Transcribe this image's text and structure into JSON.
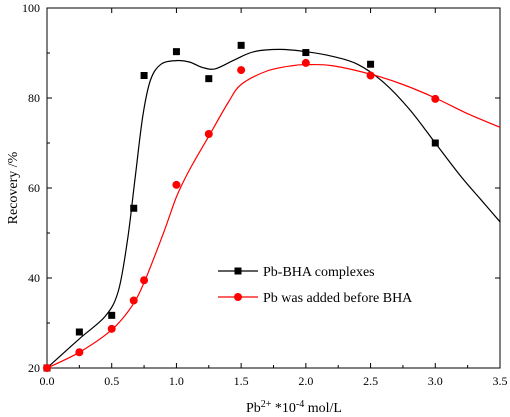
{
  "chart_data": {
    "type": "scatter",
    "xlabel": "Pb2+ *10-4 mol/L",
    "xlabel_parts": {
      "base": "Pb",
      "sup1": "2+",
      "mid": " *10",
      "sup2": "-4",
      "tail": " mol/L"
    },
    "ylabel": "Recovery /%",
    "xlim": [
      0,
      3.5
    ],
    "ylim": [
      20,
      100
    ],
    "xticks": [
      0.0,
      0.5,
      1.0,
      1.5,
      2.0,
      2.5,
      3.0,
      3.5
    ],
    "xtick_labels": [
      "0.0",
      "0.5",
      "1.0",
      "1.5",
      "2.0",
      "2.5",
      "3.0",
      "3.5"
    ],
    "yticks": [
      20,
      40,
      60,
      80,
      100
    ],
    "ytick_labels": [
      "20",
      "40",
      "60",
      "80",
      "100"
    ],
    "grid": false,
    "legend_position": "lower-right",
    "series": [
      {
        "name": "Pb-BHA complexes",
        "color": "#000000",
        "marker": "square",
        "points": [
          [
            0.0,
            20.0
          ],
          [
            0.25,
            28.0
          ],
          [
            0.5,
            31.7
          ],
          [
            0.67,
            55.5
          ],
          [
            0.75,
            85.0
          ],
          [
            1.0,
            90.3
          ],
          [
            1.25,
            84.3
          ],
          [
            1.5,
            91.7
          ],
          [
            2.0,
            90.1
          ],
          [
            2.5,
            87.5
          ],
          [
            3.0,
            70.0
          ]
        ],
        "fit_curve": [
          [
            0.0,
            20.0
          ],
          [
            0.25,
            26.5
          ],
          [
            0.45,
            31.5
          ],
          [
            0.55,
            37.0
          ],
          [
            0.62,
            48.0
          ],
          [
            0.68,
            62.0
          ],
          [
            0.74,
            76.0
          ],
          [
            0.8,
            84.0
          ],
          [
            0.88,
            87.5
          ],
          [
            1.0,
            88.3
          ],
          [
            1.1,
            88.0
          ],
          [
            1.2,
            86.8
          ],
          [
            1.3,
            86.5
          ],
          [
            1.45,
            88.5
          ],
          [
            1.6,
            90.3
          ],
          [
            1.8,
            90.8
          ],
          [
            2.0,
            90.3
          ],
          [
            2.2,
            89.3
          ],
          [
            2.4,
            87.5
          ],
          [
            2.6,
            83.5
          ],
          [
            2.8,
            77.5
          ],
          [
            3.0,
            70.0
          ],
          [
            3.2,
            62.5
          ],
          [
            3.35,
            57.5
          ],
          [
            3.5,
            52.5
          ]
        ]
      },
      {
        "name": "Pb was added before BHA",
        "color": "#ff0000",
        "marker": "circle",
        "points": [
          [
            0.0,
            20.0
          ],
          [
            0.25,
            23.5
          ],
          [
            0.5,
            28.7
          ],
          [
            0.67,
            35.0
          ],
          [
            0.75,
            39.5
          ],
          [
            1.0,
            60.7
          ],
          [
            1.25,
            72.0
          ],
          [
            1.5,
            86.2
          ],
          [
            2.0,
            87.8
          ],
          [
            2.5,
            85.0
          ],
          [
            3.0,
            79.8
          ]
        ],
        "fit_curve": [
          [
            0.0,
            20.0
          ],
          [
            0.25,
            23.5
          ],
          [
            0.5,
            28.5
          ],
          [
            0.65,
            33.5
          ],
          [
            0.75,
            39.0
          ],
          [
            0.9,
            50.0
          ],
          [
            1.0,
            58.0
          ],
          [
            1.1,
            64.0
          ],
          [
            1.25,
            71.5
          ],
          [
            1.4,
            79.0
          ],
          [
            1.5,
            83.0
          ],
          [
            1.7,
            86.0
          ],
          [
            1.9,
            87.2
          ],
          [
            2.0,
            87.4
          ],
          [
            2.2,
            87.2
          ],
          [
            2.5,
            85.3
          ],
          [
            2.75,
            83.0
          ],
          [
            3.0,
            80.0
          ],
          [
            3.25,
            76.5
          ],
          [
            3.5,
            73.5
          ]
        ]
      }
    ]
  }
}
